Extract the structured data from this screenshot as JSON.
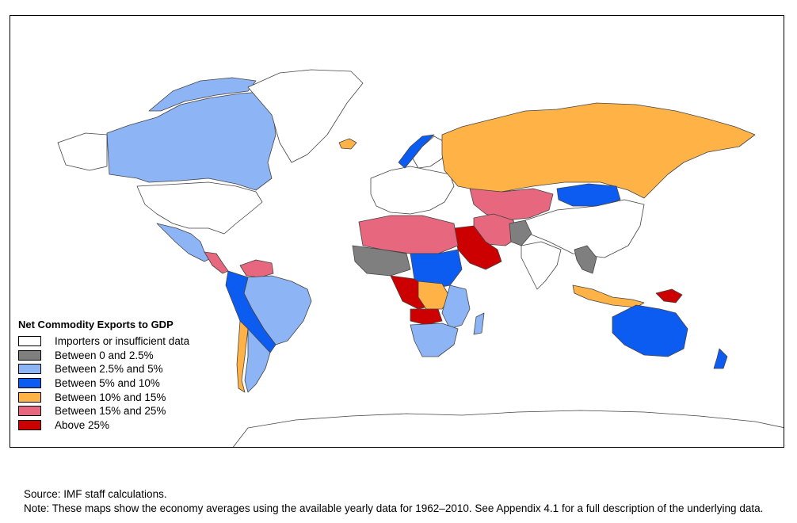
{
  "legend": {
    "title": "Net Commodity Exports to GDP",
    "items": [
      {
        "label": "Importers or insufficient data",
        "color": "#ffffff"
      },
      {
        "label": "Between 0 and 2.5%",
        "color": "#7f7f7f"
      },
      {
        "label": "Between 2.5% and 5%",
        "color": "#8db4f5"
      },
      {
        "label": "Between 5% and 10%",
        "color": "#0d5cf2"
      },
      {
        "label": "Between 10% and 15%",
        "color": "#ffb347"
      },
      {
        "label": "Between 15% and 25%",
        "color": "#e7677e"
      },
      {
        "label": "Above 25%",
        "color": "#cc0000"
      }
    ]
  },
  "footer": {
    "source": "Source: IMF staff calculations.",
    "note": "Note: These maps show the economy averages using the available yearly data for 1962–2010. See Appendix 4.1 for a full description of the underlying data."
  }
}
